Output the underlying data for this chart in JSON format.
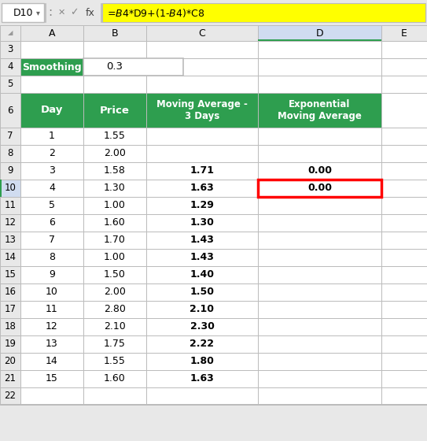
{
  "formula_bar_cell": "D10",
  "formula_bar_text": "=$B$4*D9+(1-$B$4)*C8",
  "smoothing_label": "Smoothing",
  "smoothing_value": "0.3",
  "table_headers": [
    "Day",
    "Price",
    "Moving Average -\n3 Days",
    "Exponential\nMoving Average"
  ],
  "days": [
    1,
    2,
    3,
    4,
    5,
    6,
    7,
    8,
    9,
    10,
    11,
    12,
    13,
    14,
    15
  ],
  "prices": [
    "1.55",
    "2.00",
    "1.58",
    "1.30",
    "1.00",
    "1.60",
    "1.70",
    "1.00",
    "1.50",
    "2.00",
    "2.80",
    "2.10",
    "1.75",
    "1.55",
    "1.60"
  ],
  "moving_avg": [
    "",
    "",
    "1.71",
    "1.63",
    "1.29",
    "1.30",
    "1.43",
    "1.43",
    "1.40",
    "1.50",
    "2.10",
    "2.30",
    "2.22",
    "1.80",
    "1.63"
  ],
  "ema": [
    "",
    "",
    "0.00",
    "0.00",
    "",
    "",
    "",
    "",
    "",
    "",
    "",
    "",
    "",
    "",
    ""
  ],
  "green_bg": "#2E9E4F",
  "formula_bar_bg": "#FFFF00",
  "selected_border": "#FF0000",
  "col_D_header_bg": "#D0DCF0",
  "col_D_rn_bg": "#D0DCF0",
  "grid_color": "#BBBBBB",
  "bg_color": "#E8E8E8",
  "white": "#FFFFFF",
  "black": "#000000",
  "gray_icon": "#888888",
  "col_A_selected_left_border": "#2E9E4F"
}
